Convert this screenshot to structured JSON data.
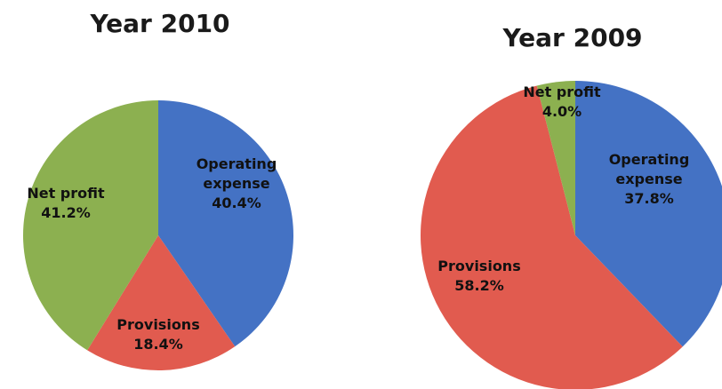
{
  "chart_data": [
    {
      "type": "pie",
      "title": "Year 2010",
      "slices": [
        {
          "label": [
            "Operating",
            "expense"
          ],
          "value": 40.4,
          "value_label": "40.4%",
          "color": "#4472C4"
        },
        {
          "label": [
            "Provisions"
          ],
          "value": 18.4,
          "value_label": "18.4%",
          "color": "#E15B4F"
        },
        {
          "label": [
            "Net profit"
          ],
          "value": 41.2,
          "value_label": "41.2%",
          "color": "#8CB050"
        }
      ]
    },
    {
      "type": "pie",
      "title": "Year 2009",
      "slices": [
        {
          "label": [
            "Operating",
            "expense"
          ],
          "value": 37.8,
          "value_label": "37.8%",
          "color": "#4472C4"
        },
        {
          "label": [
            "Provisions"
          ],
          "value": 58.2,
          "value_label": "58.2%",
          "color": "#E15B4F"
        },
        {
          "label": [
            "Net profit"
          ],
          "value": 4.0,
          "value_label": "4.0%",
          "color": "#8CB050"
        }
      ]
    }
  ]
}
